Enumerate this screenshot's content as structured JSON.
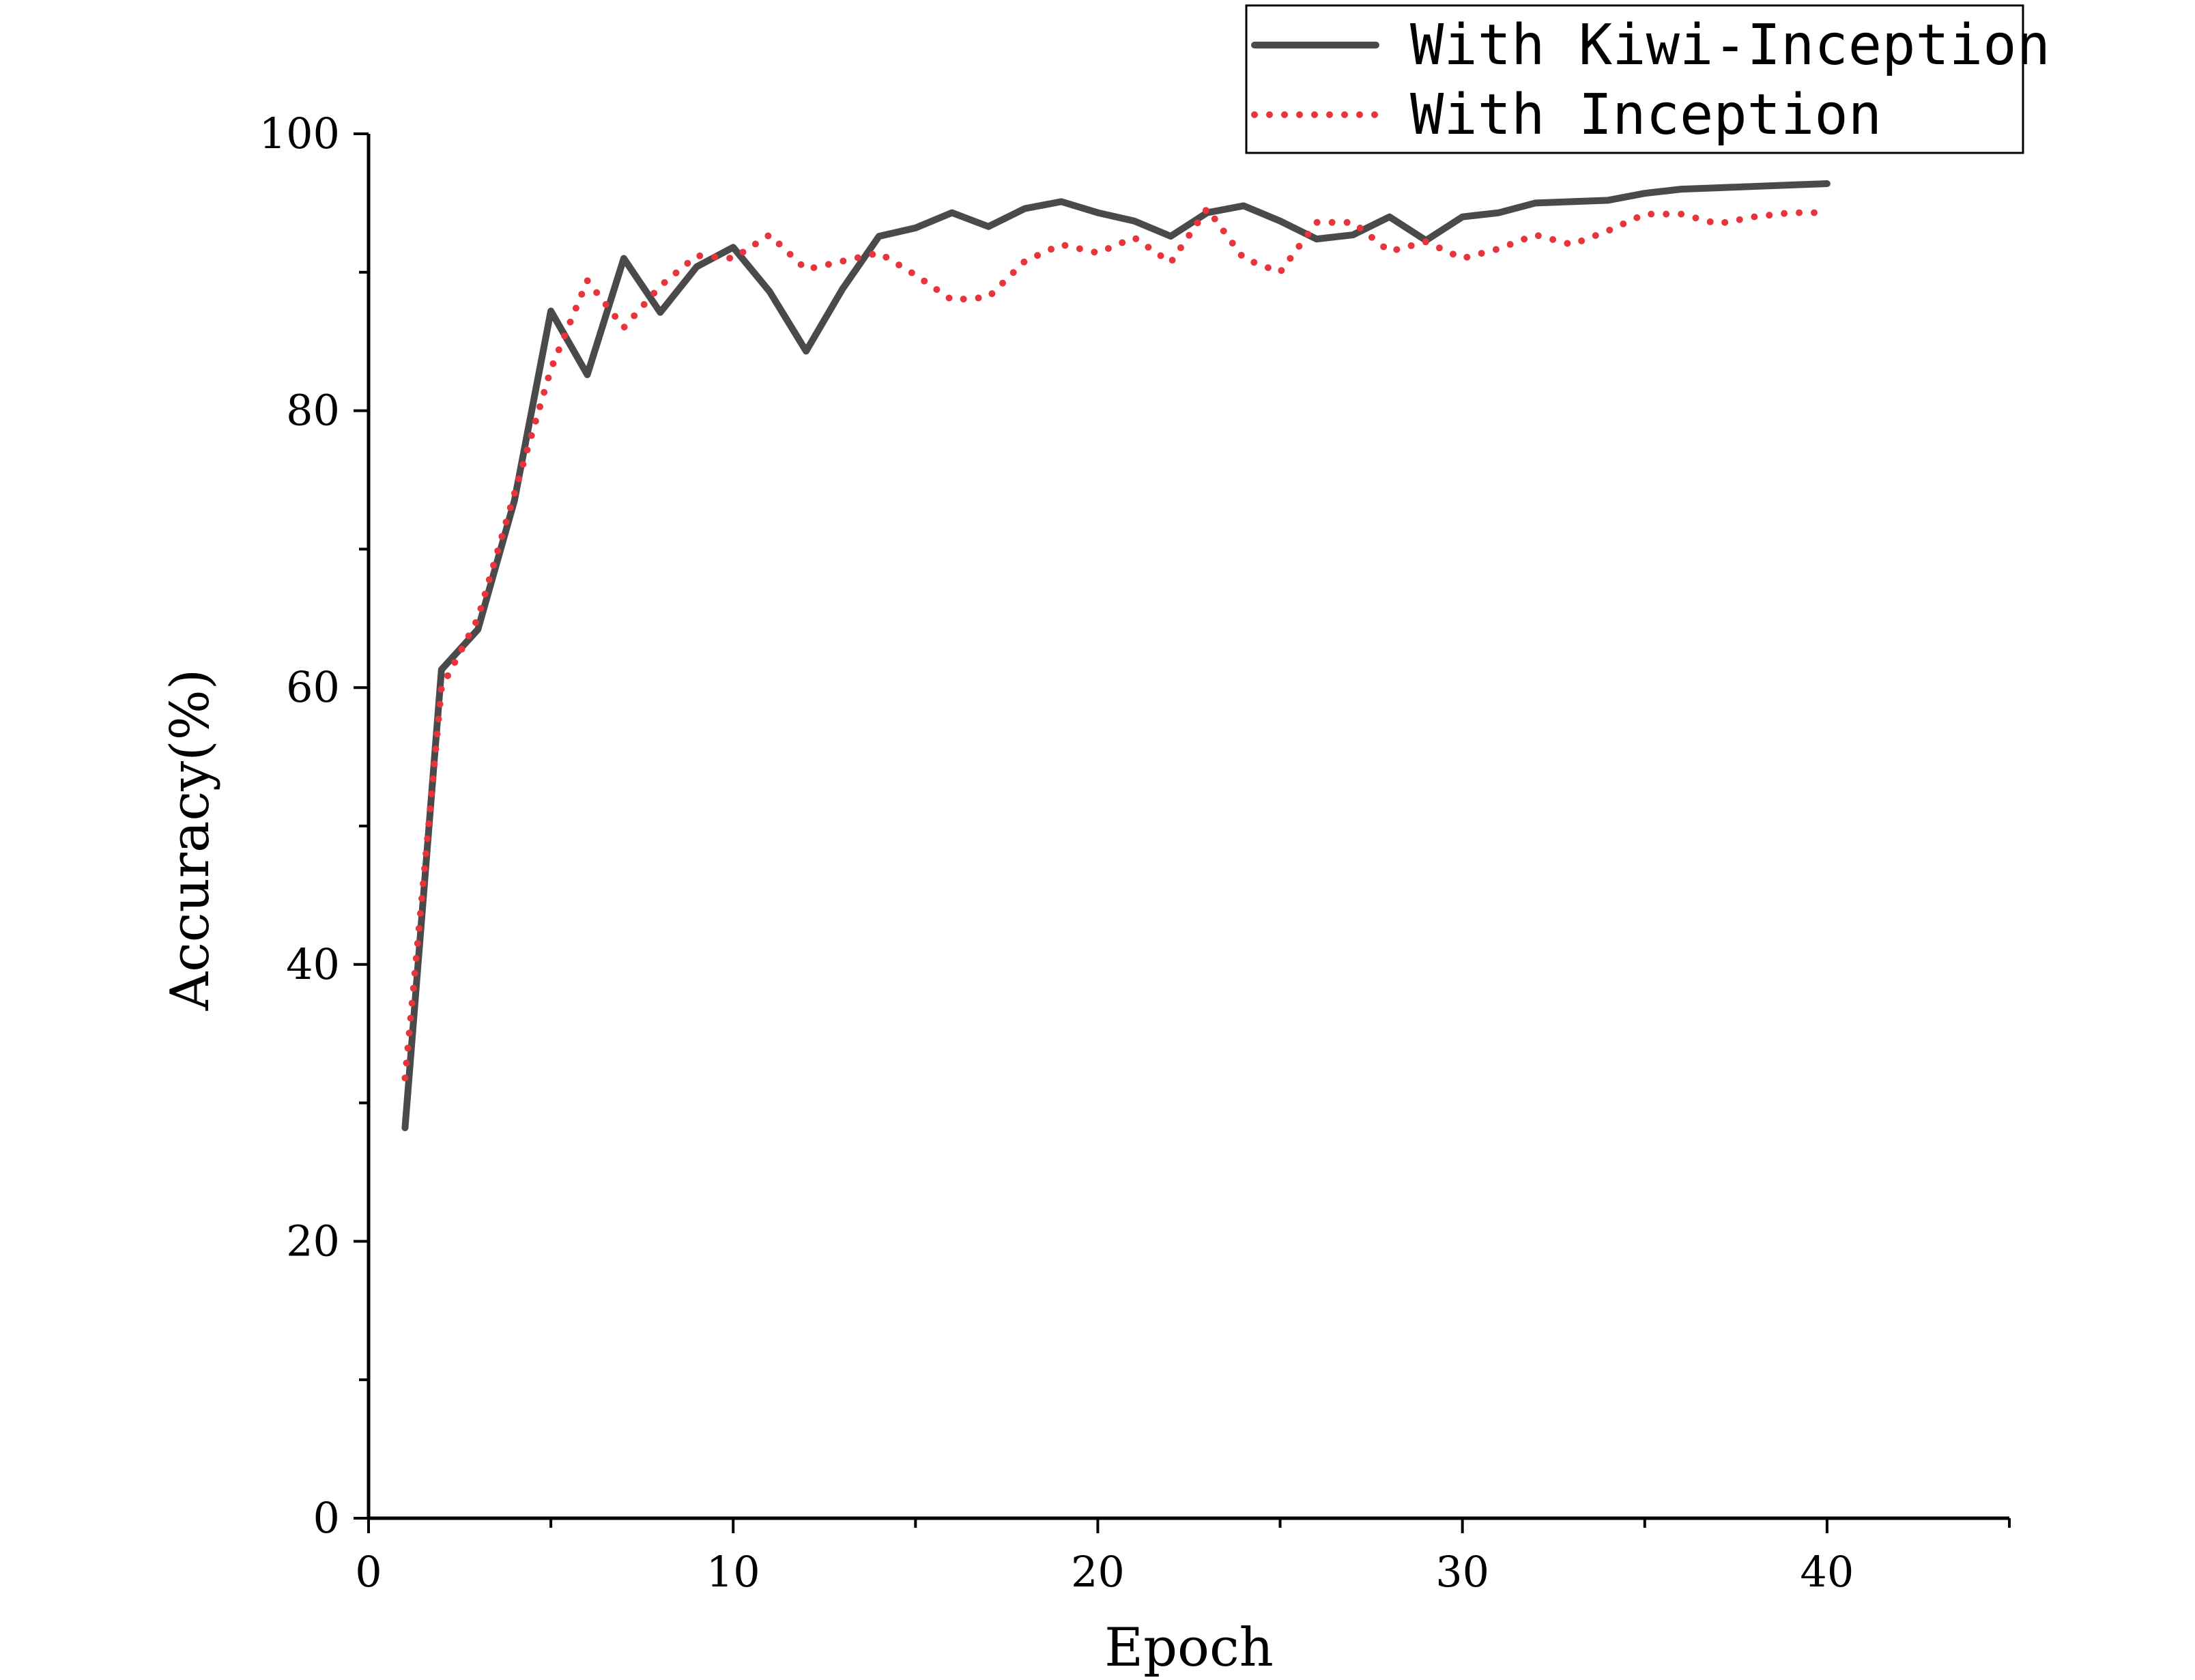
{
  "chart_data": {
    "type": "line",
    "xlabel": "Epoch",
    "ylabel": "Accuracy(%)",
    "xlim": [
      0,
      45
    ],
    "ylim": [
      0,
      100
    ],
    "x_ticks": [
      0,
      10,
      20,
      30,
      40
    ],
    "y_ticks": [
      0,
      20,
      40,
      60,
      80,
      100
    ],
    "x": [
      1,
      2,
      3,
      4,
      5,
      6,
      7,
      8,
      9,
      10,
      11,
      12,
      13,
      14,
      15,
      16,
      17,
      18,
      19,
      20,
      21,
      22,
      23,
      24,
      25,
      26,
      27,
      28,
      29,
      30,
      31,
      32,
      33,
      34,
      35,
      36,
      37,
      38,
      39,
      40
    ],
    "legend_position": "top-right",
    "grid": false,
    "series": [
      {
        "name": "With Kiwi-Inception",
        "color": "#4a4a4a",
        "style": "solid",
        "values": [
          28.2,
          61.3,
          64.2,
          73.5,
          87.2,
          82.6,
          91.0,
          87.1,
          90.4,
          91.8,
          88.6,
          84.3,
          88.8,
          92.6,
          93.2,
          94.3,
          93.3,
          94.6,
          95.1,
          94.3,
          93.7,
          92.6,
          94.3,
          94.8,
          93.7,
          92.4,
          92.7,
          94.0,
          92.3,
          94.0,
          94.3,
          95.0,
          95.1,
          95.2,
          95.7,
          96.0,
          96.1,
          96.2,
          96.3,
          96.4
        ]
      },
      {
        "name": "With Inception",
        "color": "#e8353b",
        "style": "dotted",
        "values": [
          31.8,
          60.0,
          65.0,
          74.0,
          83.0,
          89.4,
          86.0,
          89.0,
          91.2,
          91.0,
          92.7,
          90.2,
          90.8,
          91.4,
          89.8,
          88.0,
          88.2,
          90.8,
          92.0,
          91.4,
          92.5,
          90.7,
          94.6,
          91.0,
          90.0,
          93.6,
          93.6,
          91.5,
          92.2,
          91.0,
          91.7,
          92.7,
          92.0,
          93.0,
          94.2,
          94.2,
          93.5,
          94.0,
          94.3,
          94.3
        ]
      }
    ]
  }
}
